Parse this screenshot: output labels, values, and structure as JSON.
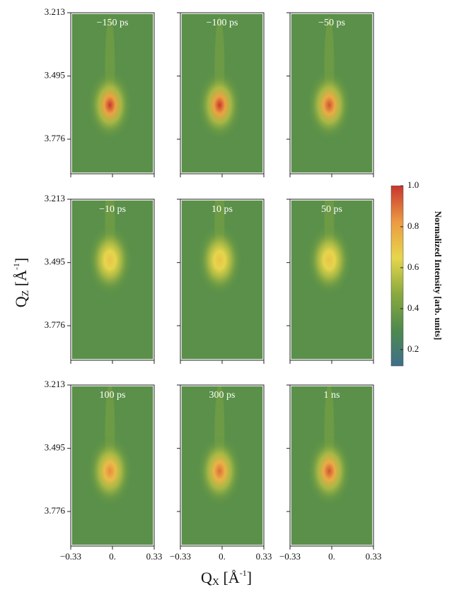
{
  "chart_data": {
    "type": "heatmap-grid",
    "x_label": {
      "symbol": "Q",
      "sub": "X",
      "unit": "[Å",
      "sup": "-1",
      "close": "]"
    },
    "y_label": {
      "symbol": "Q",
      "sub": "Z",
      "unit": "[Å",
      "sup": "-1",
      "close": "]"
    },
    "xlim": [
      -0.33,
      0.33
    ],
    "xticks": [
      {
        "value": -0.33,
        "label": "−0.33"
      },
      {
        "value": 0,
        "label": "0."
      },
      0.33
    ],
    "ylim": [
      3.213,
      3.93
    ],
    "yticks": [
      3.213,
      3.495,
      3.776
    ],
    "colorbar": {
      "label": "Normalized Intensity [arb. units]",
      "clim": [
        0.12,
        1.0
      ],
      "ticks": [
        0.2,
        0.4,
        0.6,
        0.8,
        {
          "value": 1.0,
          "label": "1.0"
        }
      ],
      "colormap": [
        "#3f6f8c",
        "#4e8a4c",
        "#8aaa3e",
        "#e6d64c",
        "#ec9a42",
        "#c8362e"
      ]
    },
    "panels": [
      {
        "title": "−150 ps",
        "center_qx": -0.02,
        "center_qz": 3.624,
        "peak": 1.0
      },
      {
        "title": "−100 ps",
        "center_qx": -0.02,
        "center_qz": 3.624,
        "peak": 1.0
      },
      {
        "title": "−50 ps",
        "center_qx": -0.02,
        "center_qz": 3.624,
        "peak": 0.95
      },
      {
        "title": "−10 ps",
        "center_qx": -0.02,
        "center_qz": 3.484,
        "peak": 0.7
      },
      {
        "title": "10 ps",
        "center_qx": -0.02,
        "center_qz": 3.484,
        "peak": 0.7
      },
      {
        "title": "50 ps",
        "center_qx": -0.02,
        "center_qz": 3.484,
        "peak": 0.7
      },
      {
        "title": "100 ps",
        "center_qx": -0.02,
        "center_qz": 3.596,
        "peak": 0.85
      },
      {
        "title": "300 ps",
        "center_qx": -0.02,
        "center_qz": 3.596,
        "peak": 0.9
      },
      {
        "title": "1 ns",
        "center_qx": -0.02,
        "center_qz": 3.596,
        "peak": 0.95
      }
    ]
  }
}
